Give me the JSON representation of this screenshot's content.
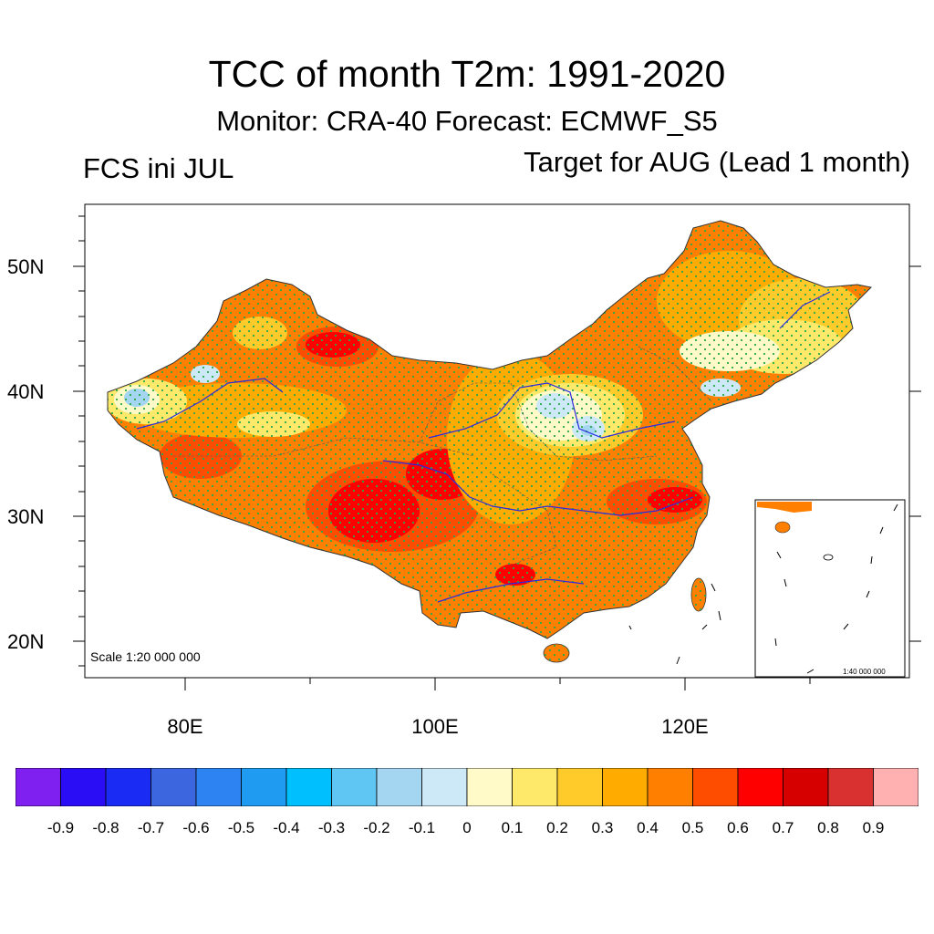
{
  "title": "TCC of month T2m: 1991-2020",
  "subtitle": "Monitor: CRA-40   Forecast: ECMWF_S5",
  "left_label": "FCS ini JUL",
  "right_label": "Target for AUG (Lead 1 month)",
  "lat_labels": [
    "50N",
    "40N",
    "30N",
    "20N"
  ],
  "lon_labels": [
    "80E",
    "100E",
    "120E"
  ],
  "scale_label": "Scale 1:20 000 000",
  "inset_scale_label": "1:40 000 000",
  "colorbar": {
    "colors": [
      "#7f1ff0",
      "#2a0cf5",
      "#1a2bf3",
      "#3b66e0",
      "#2e83f2",
      "#1f9bf2",
      "#00bfff",
      "#5fc6f3",
      "#a4d6f2",
      "#cde9f7",
      "#fffac8",
      "#ffe96a",
      "#ffcb2b",
      "#ffab00",
      "#ff8000",
      "#ff4d00",
      "#ff0000",
      "#d60000",
      "#d93030",
      "#ffb0b0"
    ],
    "ticks": [
      "-0.9",
      "-0.8",
      "-0.7",
      "-0.6",
      "-0.5",
      "-0.4",
      "-0.3",
      "-0.2",
      "-0.1",
      "0",
      "0.1",
      "0.2",
      "0.3",
      "0.4",
      "0.5",
      "0.6",
      "0.7",
      "0.8",
      "0.9"
    ]
  },
  "colors": {
    "stipple": "#2aa84a",
    "river": "#2a2ae0"
  }
}
